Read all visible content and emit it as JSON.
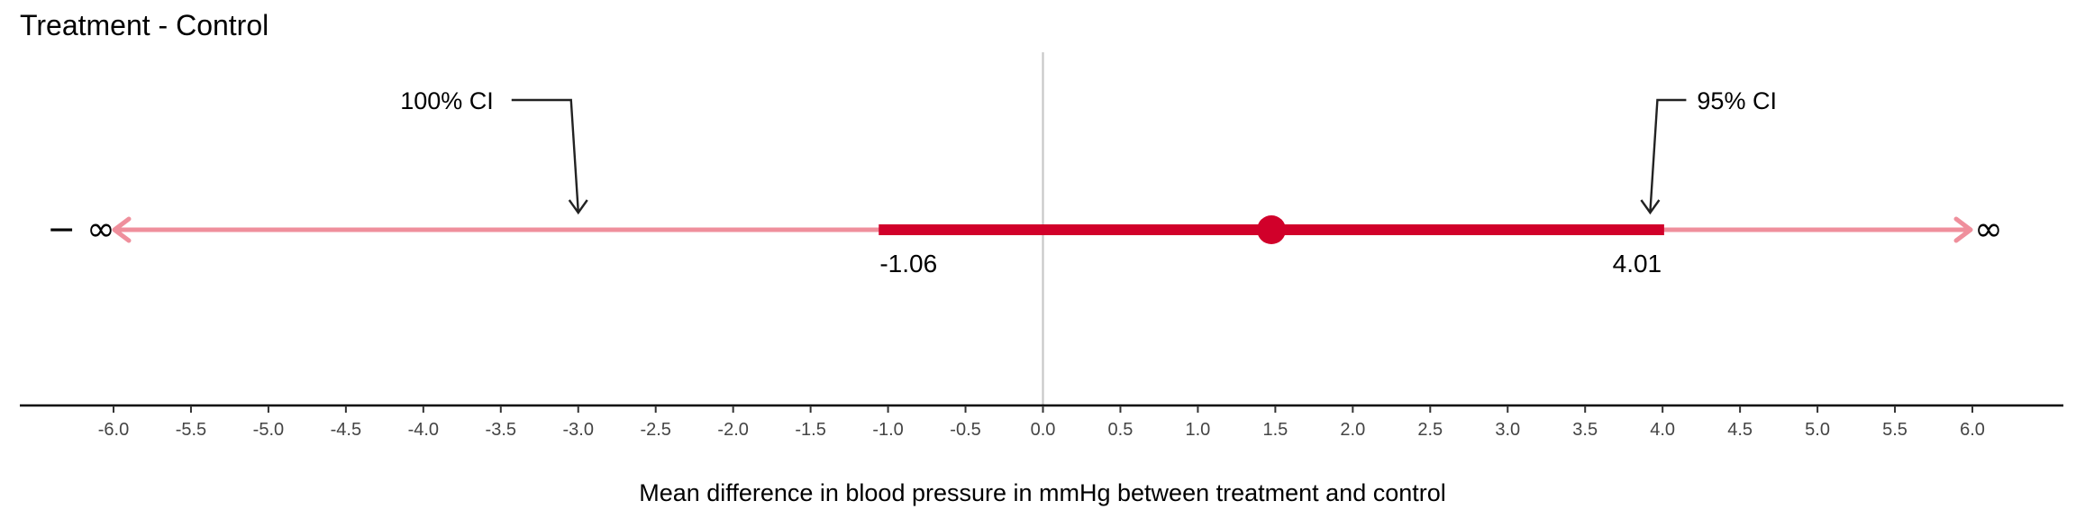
{
  "chart_data": {
    "type": "interval",
    "title": "Treatment - Control",
    "xlabel": "Mean difference in blood pressure in mmHg between treatment and control",
    "xlim": [
      -6.0,
      6.0
    ],
    "xticks": [
      -6.0,
      -5.5,
      -5.0,
      -4.5,
      -4.0,
      -3.5,
      -3.0,
      -2.5,
      -2.0,
      -1.5,
      -1.0,
      -0.5,
      0.0,
      0.5,
      1.0,
      1.5,
      2.0,
      2.5,
      3.0,
      3.5,
      4.0,
      4.5,
      5.0,
      5.5,
      6.0
    ],
    "xtick_labels": [
      "-6.0",
      "-5.5",
      "-5.0",
      "-4.5",
      "-4.0",
      "-3.5",
      "-3.0",
      "-2.5",
      "-2.0",
      "-1.5",
      "-1.0",
      "-0.5",
      "0.0",
      "0.5",
      "1.0",
      "1.5",
      "2.0",
      "2.5",
      "3.0",
      "3.5",
      "4.0",
      "4.5",
      "5.0",
      "5.5",
      "6.0"
    ],
    "reference_line": 0.0,
    "point_estimate": 1.475,
    "ci95": {
      "lower": -1.06,
      "upper": 4.01,
      "lower_label": "-1.06",
      "upper_label": "4.01"
    },
    "ci100": {
      "lower_label": "− ∞",
      "upper_label": "∞"
    },
    "annotations": [
      {
        "text": "100% CI",
        "points_to": -3.0
      },
      {
        "text": "95% CI",
        "points_to": 3.92
      }
    ],
    "colors": {
      "point": "#d1002a",
      "ci95": "#d1002a",
      "ci100": "#ef8f9c",
      "reference": "#c8c8c8",
      "axis": "#000000",
      "annotation": "#222222"
    }
  }
}
